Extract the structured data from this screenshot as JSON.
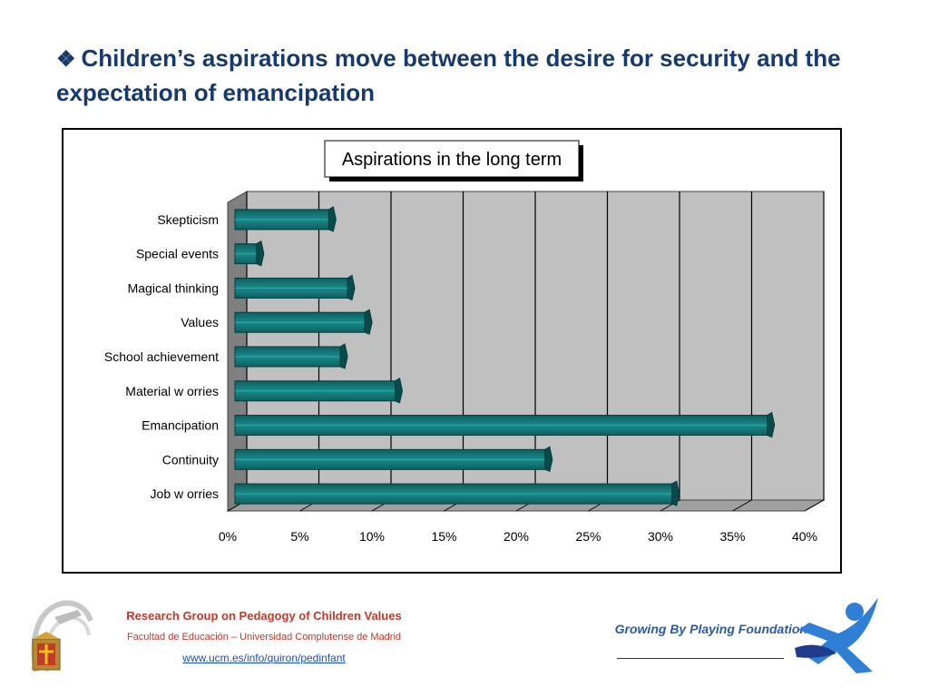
{
  "slide": {
    "bullet_glyph": "❖",
    "title": "Children’s aspirations move between the desire for security and the expectation of emancipation"
  },
  "chart_data": {
    "type": "bar",
    "orientation": "horizontal",
    "title": "Aspirations in the long term",
    "categories": [
      "Skepticism",
      "Special events",
      "Magical thinking",
      "Values",
      "School achievement",
      "Material w orries",
      "Emancipation",
      "Continuity",
      "Job w orries"
    ],
    "values": [
      6.5,
      1.5,
      7.8,
      9.0,
      7.3,
      11.1,
      36.9,
      21.5,
      30.3
    ],
    "xlim": [
      0,
      40
    ],
    "xticks": [
      0,
      5,
      10,
      15,
      20,
      25,
      30,
      35,
      40
    ],
    "tick_labels": [
      "0%",
      "5%",
      "10%",
      "15%",
      "20%",
      "25%",
      "30%",
      "35%",
      "40%"
    ],
    "xlabel": "",
    "ylabel": "",
    "grid": true,
    "bar_color": "#137878",
    "background_color": "#c0c0c0",
    "style": "3d"
  },
  "footer": {
    "org_name": "Research Group on Pedagogy of Children Values",
    "faculty": "Facultad de Educación – Universidad Complutense de Madrid",
    "url": "www.ucm.es/info/quiron/pedinfant",
    "foundation": "Growing By Playing Foundation"
  }
}
